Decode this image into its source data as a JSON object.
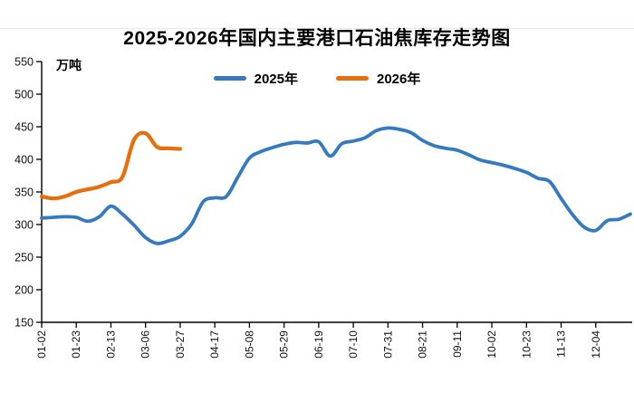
{
  "title": "2025-2026年国内主要港口石油焦库存走势图",
  "unit_label": "万吨",
  "legend": {
    "items": [
      {
        "label": "2025年",
        "color": "#3579bf"
      },
      {
        "label": "2026年",
        "color": "#e56e0d"
      }
    ]
  },
  "colors": {
    "series_2025": "#3579bf",
    "series_2026": "#e56e0d",
    "axis": "#000000",
    "divider": "#e9e9e9"
  },
  "chart_data": {
    "type": "line",
    "title": "2025-2026年国内主要港口石油焦库存走势图",
    "ylabel": "万吨",
    "xlabel": "",
    "grid": false,
    "legend_position": "top-center",
    "smooth": true,
    "ylim": [
      150,
      550
    ],
    "y_ticks": [
      150,
      200,
      250,
      300,
      350,
      400,
      450,
      500,
      550
    ],
    "x_tick_labels": [
      "01-02",
      "01-23",
      "02-13",
      "03-06",
      "03-27",
      "04-17",
      "05-08",
      "05-29",
      "06-19",
      "07-10",
      "07-31",
      "08-21",
      "09-11",
      "10-02",
      "10-23",
      "11-13",
      "12-04"
    ],
    "x_tick_every_n_points": 3,
    "x_labels_rotated_deg": 90,
    "series": [
      {
        "name": "2025年",
        "color": "#3579bf",
        "start_label": "01-02",
        "interval_days": 7,
        "values": [
          310,
          311,
          312,
          311,
          305,
          312,
          328,
          316,
          299,
          280,
          271,
          275,
          282,
          301,
          335,
          341,
          343,
          373,
          402,
          412,
          418,
          423,
          426,
          425,
          427,
          405,
          424,
          428,
          433,
          444,
          448,
          446,
          441,
          429,
          421,
          417,
          414,
          407,
          399,
          395,
          391,
          386,
          380,
          371,
          366,
          340,
          315,
          296,
          291,
          306,
          308,
          316
        ]
      },
      {
        "name": "2026年",
        "color": "#e56e0d",
        "start_label": "01-02",
        "interval_days": 7,
        "values": [
          343,
          340,
          343,
          350,
          354,
          358,
          365,
          373,
          430,
          440,
          419,
          417,
          416
        ]
      }
    ]
  }
}
